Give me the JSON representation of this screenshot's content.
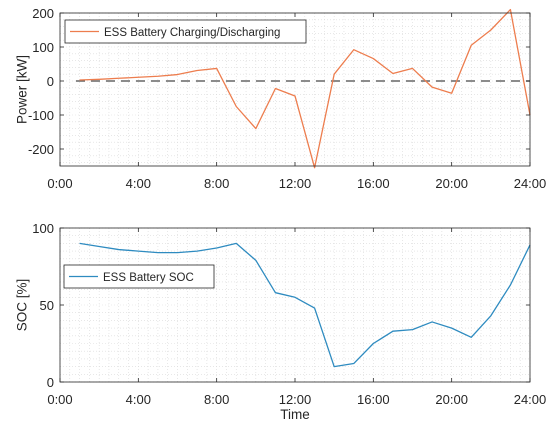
{
  "figure": {
    "xlabel": "Time",
    "x_tick_labels": [
      "0:00",
      "4:00",
      "8:00",
      "12:00",
      "16:00",
      "20:00",
      "24:00"
    ],
    "x_ticks": [
      0,
      4,
      8,
      12,
      16,
      20,
      24
    ]
  },
  "chart_data": [
    {
      "type": "line",
      "ylabel": "Power [kW]",
      "xlim": [
        0,
        24
      ],
      "ylim": [
        -250,
        200
      ],
      "y_ticks": [
        -200,
        -100,
        0,
        100,
        200
      ],
      "grid": "dotted-minor",
      "legend_position": "top-left",
      "reference_line": {
        "y": 0,
        "style": "dashed"
      },
      "series": [
        {
          "name": "ESS Battery Charging/Discharging",
          "color": "#ED7D4E",
          "x": [
            1,
            2,
            3,
            4,
            5,
            6,
            7,
            8,
            9,
            10,
            11,
            12,
            13,
            14,
            15,
            16,
            17,
            18,
            19,
            20,
            21,
            22,
            23,
            24
          ],
          "y": [
            3,
            5,
            8,
            11,
            14,
            19,
            31,
            37,
            -75,
            -140,
            -22,
            -44,
            -255,
            20,
            92,
            66,
            22,
            37,
            -18,
            -36,
            105,
            150,
            210,
            -100
          ]
        }
      ]
    },
    {
      "type": "line",
      "ylabel": "SOC [%]",
      "xlabel": "Time",
      "xlim": [
        0,
        24
      ],
      "ylim": [
        0,
        100
      ],
      "y_ticks": [
        0,
        50,
        100
      ],
      "grid": "dotted-minor",
      "legend_position": "middle-left",
      "series": [
        {
          "name": "ESS Battery SOC",
          "color": "#2E8BC0",
          "x": [
            1,
            2,
            3,
            4,
            5,
            6,
            7,
            8,
            9,
            10,
            11,
            12,
            13,
            14,
            15,
            16,
            17,
            18,
            19,
            20,
            21,
            22,
            23,
            24
          ],
          "y": [
            90,
            88,
            86,
            85,
            84,
            84,
            85,
            87,
            90,
            79,
            58,
            55,
            48,
            10,
            12,
            25,
            33,
            34,
            39,
            35,
            29,
            43,
            63,
            89
          ]
        }
      ]
    }
  ]
}
